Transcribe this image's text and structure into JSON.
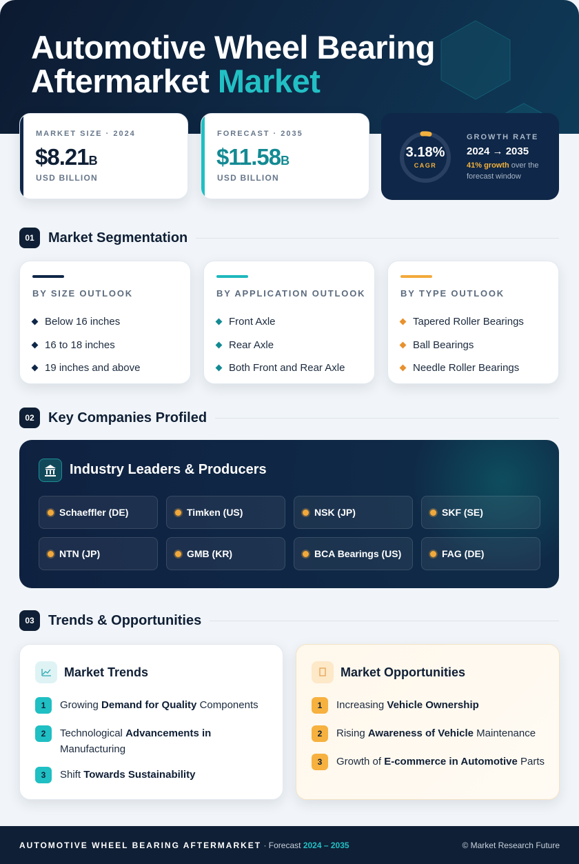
{
  "header": {
    "title": "Automotive Wheel Bearing Aftermarket",
    "title_highlight": "Market"
  },
  "stats": [
    {
      "label": "MARKET SIZE · 2024",
      "value": "$8.21",
      "unit": "B",
      "caption": "USD BILLION"
    },
    {
      "label": "FORECAST · 2035",
      "value": "$11.58",
      "unit": "B",
      "caption": "USD BILLION"
    }
  ],
  "growth": {
    "cagr": "3.18%",
    "cagr_label": "CAGR",
    "label": "GROWTH RATE",
    "period": "2024 → 2035",
    "growth": "41% growth",
    "note": "over the forecast window"
  },
  "segmentation": {
    "number": "01",
    "title": "Market Segmentation",
    "cards": [
      {
        "title": "BY SIZE OUTLOOK",
        "items": [
          "Below 16 inches",
          "16 to 18 inches",
          "19 inches and above"
        ]
      },
      {
        "title": "BY APPLICATION OUTLOOK",
        "items": [
          "Front Axle",
          "Rear Axle",
          "Both Front and Rear Axle"
        ]
      },
      {
        "title": "BY TYPE OUTLOOK",
        "items": [
          "Tapered Roller Bearings",
          "Ball Bearings",
          "Needle Roller Bearings"
        ]
      }
    ]
  },
  "companies": {
    "number": "02",
    "title": "Key Companies Profiled",
    "panel_title": "Industry Leaders & Producers",
    "items": [
      "Schaeffler (DE)",
      "Timken (US)",
      "NSK (JP)",
      "SKF (SE)",
      "NTN (JP)",
      "GMB (KR)",
      "BCA Bearings (US)",
      "FAG (DE)"
    ]
  },
  "trends": {
    "number": "03",
    "title": "Trends & Opportunities",
    "cards": [
      {
        "title": "Market Trends",
        "items": [
          {
            "n": 1,
            "pre": "Growing",
            "bold": "Demand for Quality",
            "post": "Components"
          },
          {
            "n": 2,
            "pre": "Technological",
            "bold": "Advancements in",
            "post": "Manufacturing"
          },
          {
            "n": 3,
            "pre": "Shift",
            "bold": "Towards Sustainability"
          }
        ]
      },
      {
        "title": "Market Opportunities",
        "items": [
          {
            "n": 1,
            "pre": "Increasing",
            "bold": "Vehicle Ownership"
          },
          {
            "n": 2,
            "pre": "Rising",
            "bold": "Awareness of Vehicle",
            "post": "Maintenance"
          },
          {
            "n": 3,
            "pre": "Growth of",
            "bold": "E-commerce in Automotive",
            "post": "Parts"
          }
        ]
      }
    ]
  },
  "footer": {
    "title": "AUTOMOTIVE WHEEL BEARING AFTERMARKET",
    "forecast_label": "· Forecast",
    "period": "2024 – 2035",
    "credit": "© Market Research Future"
  }
}
